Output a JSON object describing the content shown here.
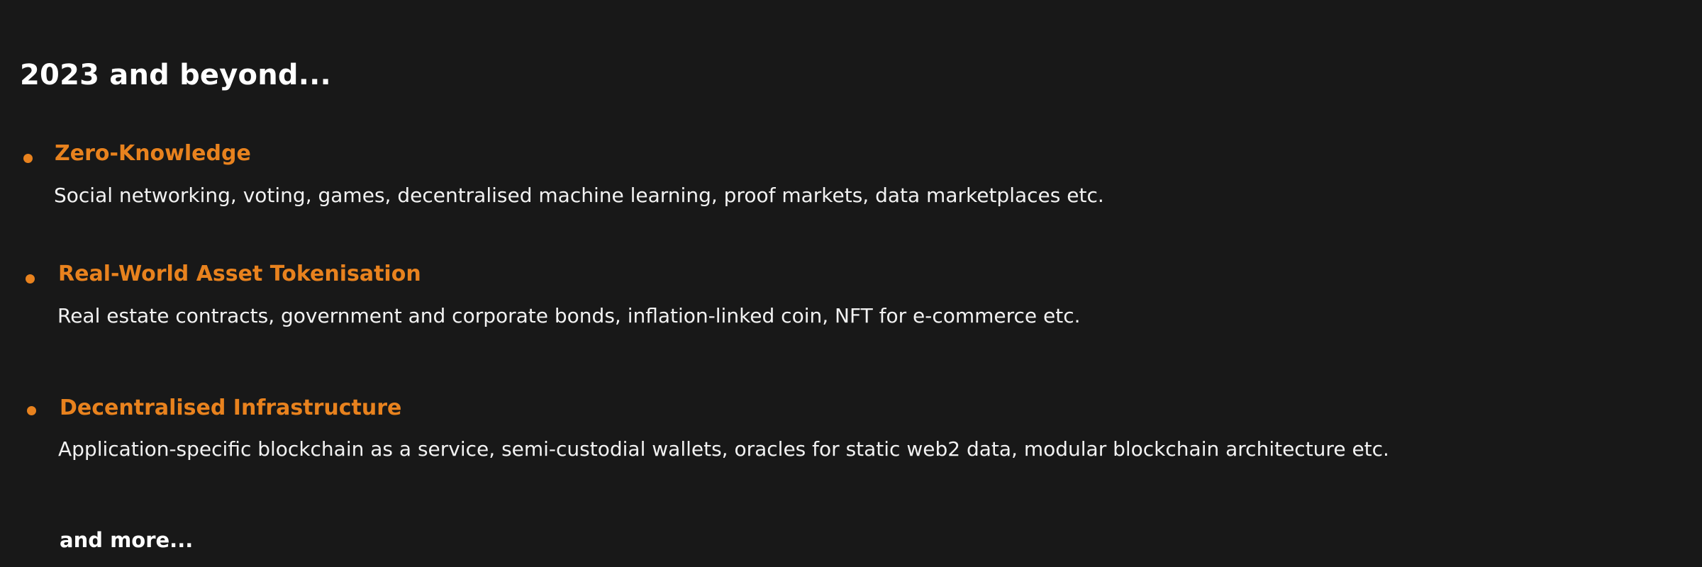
{
  "slide": {
    "title": "2023 and beyond...",
    "accent_color": "#e8821e",
    "items": [
      {
        "heading": "Zero-Knowledge",
        "description": "Social networking, voting, games, decentralised machine learning, proof markets, data marketplaces etc."
      },
      {
        "heading": "Real-World Asset Tokenisation",
        "description": "Real estate contracts, government and corporate bonds, inflation-linked coin, NFT for e-commerce etc."
      },
      {
        "heading": "Decentralised Infrastructure",
        "description": "Application-specific blockchain as a service, semi-custodial wallets, oracles for static web2 data, modular blockchain architecture etc."
      }
    ],
    "footer_text": "and more..."
  }
}
